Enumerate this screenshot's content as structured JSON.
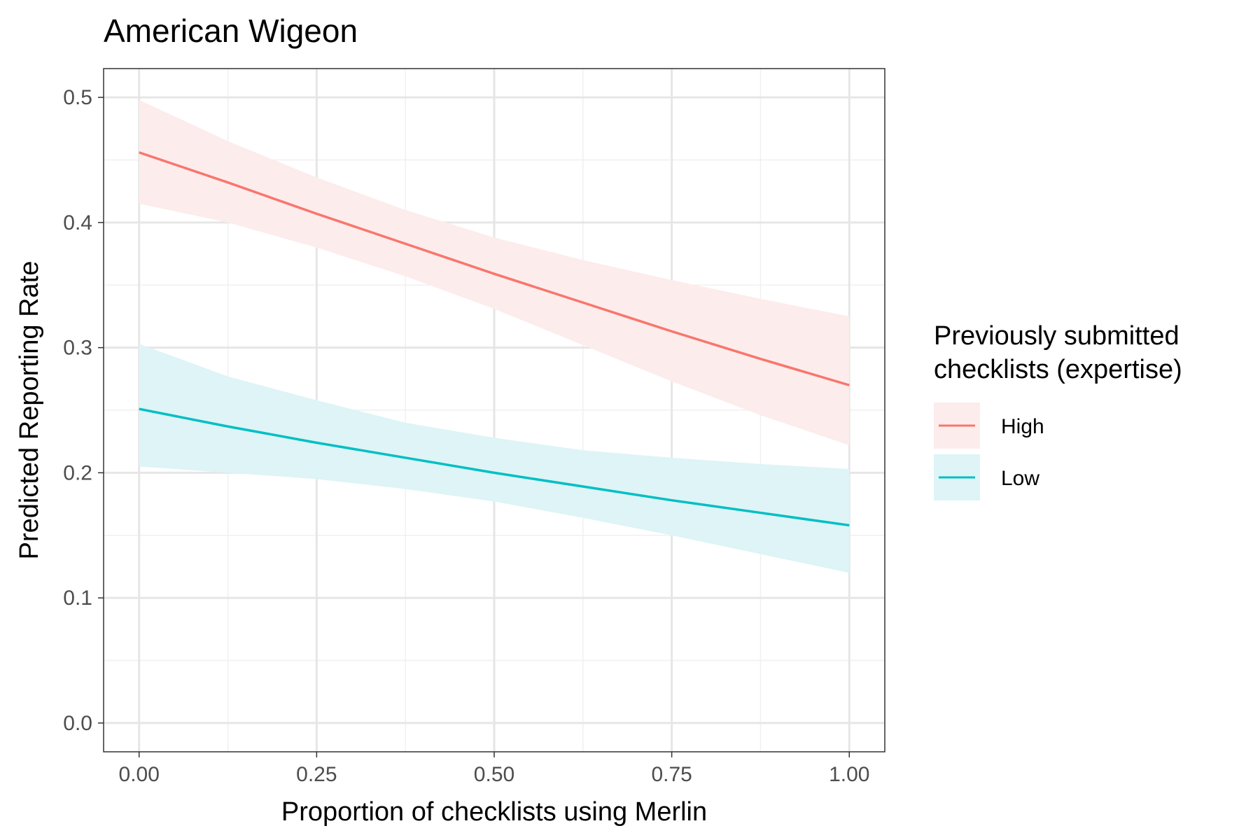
{
  "chart_data": {
    "type": "line",
    "title": "American Wigeon",
    "xlabel": "Proportion of checklists using Merlin",
    "ylabel": "Predicted Reporting Rate",
    "xlim": [
      -0.05,
      1.05
    ],
    "ylim": [
      -0.023,
      0.523
    ],
    "x_ticks": [
      0,
      0.25,
      0.5,
      0.75,
      1
    ],
    "x_tick_labels": [
      "0.00",
      "0.25",
      "0.50",
      "0.75",
      "1.00"
    ],
    "y_ticks": [
      0,
      0.1,
      0.2,
      0.3,
      0.4,
      0.5
    ],
    "y_tick_labels": [
      "0.0",
      "0.1",
      "0.2",
      "0.3",
      "0.4",
      "0.5"
    ],
    "grid": true,
    "legend": {
      "title_lines": [
        "Previously submitted",
        "checklists (expertise)"
      ],
      "position": "right"
    },
    "x": [
      0,
      0.125,
      0.25,
      0.375,
      0.5,
      0.625,
      0.75,
      0.875,
      1
    ],
    "series": [
      {
        "name": "High",
        "color": "#F8766D",
        "band_color": "#FDECEC",
        "values": [
          0.456,
          0.432,
          0.407,
          0.383,
          0.359,
          0.336,
          0.313,
          0.291,
          0.27
        ],
        "lower": [
          0.415,
          0.4,
          0.38,
          0.357,
          0.331,
          0.302,
          0.273,
          0.246,
          0.222
        ],
        "upper": [
          0.498,
          0.465,
          0.436,
          0.41,
          0.388,
          0.37,
          0.354,
          0.339,
          0.325
        ]
      },
      {
        "name": "Low",
        "color": "#00BFC4",
        "band_color": "#DEF4F6",
        "values": [
          0.251,
          0.237,
          0.224,
          0.212,
          0.2,
          0.189,
          0.178,
          0.168,
          0.158
        ],
        "lower": [
          0.205,
          0.2,
          0.195,
          0.187,
          0.177,
          0.164,
          0.15,
          0.135,
          0.12
        ],
        "upper": [
          0.303,
          0.277,
          0.258,
          0.24,
          0.228,
          0.218,
          0.212,
          0.207,
          0.203
        ]
      }
    ]
  }
}
